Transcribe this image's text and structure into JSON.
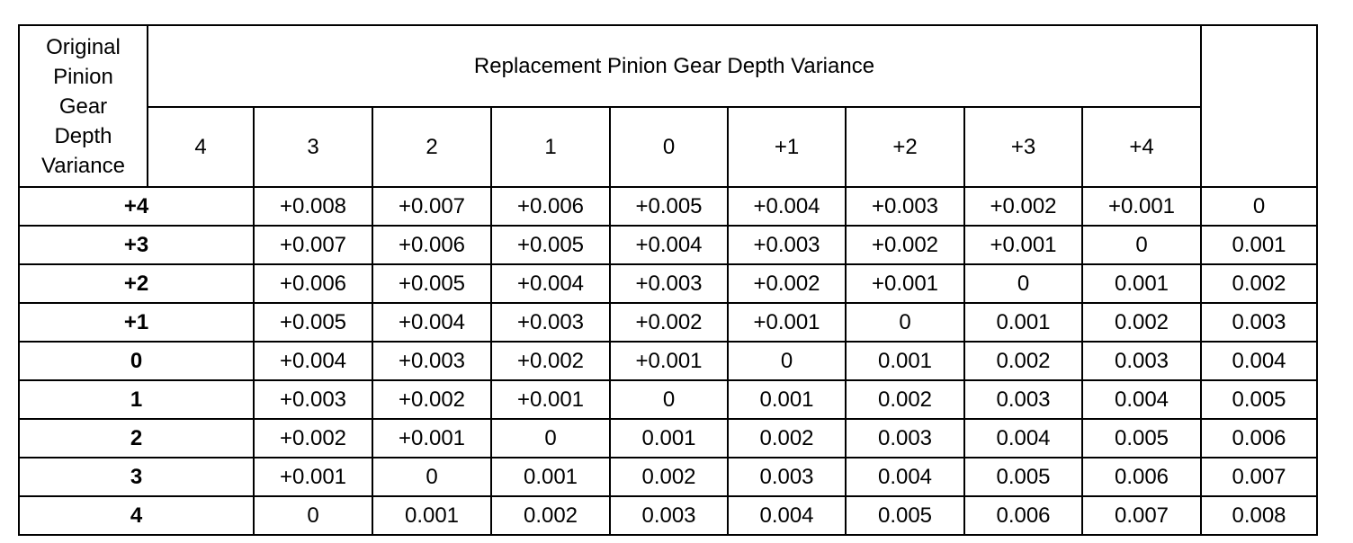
{
  "table": {
    "row_header": "Original Pinion Gear Depth Variance",
    "group_title": "Replacement Pinion Gear Depth Variance",
    "columns": [
      "4",
      "3",
      "2",
      "1",
      "0",
      "+1",
      "+2",
      "+3",
      "+4"
    ],
    "rows": [
      [
        "+4",
        "+0.008",
        "+0.007",
        "+0.006",
        "+0.005",
        "+0.004",
        "+0.003",
        "+0.002",
        "+0.001",
        "0"
      ],
      [
        "+3",
        "+0.007",
        "+0.006",
        "+0.005",
        "+0.004",
        "+0.003",
        "+0.002",
        "+0.001",
        "0",
        "0.001"
      ],
      [
        "+2",
        "+0.006",
        "+0.005",
        "+0.004",
        "+0.003",
        "+0.002",
        "+0.001",
        "0",
        "0.001",
        "0.002"
      ],
      [
        "+1",
        "+0.005",
        "+0.004",
        "+0.003",
        "+0.002",
        "+0.001",
        "0",
        "0.001",
        "0.002",
        "0.003"
      ],
      [
        "0",
        "+0.004",
        "+0.003",
        "+0.002",
        "+0.001",
        "0",
        "0.001",
        "0.002",
        "0.003",
        "0.004"
      ],
      [
        "1",
        "+0.003",
        "+0.002",
        "+0.001",
        "0",
        "0.001",
        "0.002",
        "0.003",
        "0.004",
        "0.005"
      ],
      [
        "2",
        "+0.002",
        "+0.001",
        "0",
        "0.001",
        "0.002",
        "0.003",
        "0.004",
        "0.005",
        "0.006"
      ],
      [
        "3",
        "+0.001",
        "0",
        "0.001",
        "0.002",
        "0.003",
        "0.004",
        "0.005",
        "0.006",
        "0.007"
      ],
      [
        "4",
        "0",
        "0.001",
        "0.002",
        "0.003",
        "0.004",
        "0.005",
        "0.006",
        "0.007",
        "0.008"
      ]
    ]
  }
}
